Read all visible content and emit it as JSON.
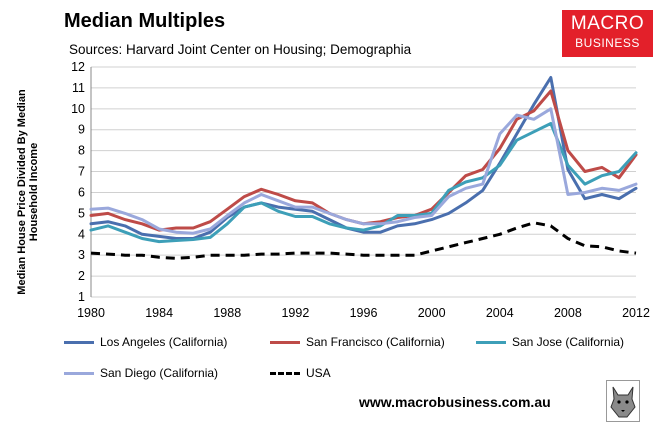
{
  "title": "Median Multiples",
  "subtitle": "Sources: Harvard Joint Center on Housing; Demographia",
  "logo": {
    "line1": "MACRO",
    "line2": "BUSINESS"
  },
  "website": "www.macrobusiness.com.au",
  "icons": {
    "wolf": "wolf-logo-icon"
  },
  "chart_data": {
    "type": "line",
    "title": "Median Multiples",
    "ylabel": "Median House Price Divided By Median Household Income",
    "xlabel": "",
    "xlim": [
      1980,
      2012
    ],
    "ylim": [
      1,
      12
    ],
    "xticks": [
      "1980",
      "1984",
      "1988",
      "1992",
      "1996",
      "2000",
      "2004",
      "2008",
      "2012"
    ],
    "yticks": [
      "1",
      "2",
      "3",
      "4",
      "5",
      "6",
      "7",
      "8",
      "9",
      "10",
      "11",
      "12"
    ],
    "grid": "horizontal",
    "legend": "bottom",
    "x": [
      1980,
      1981,
      1982,
      1983,
      1984,
      1985,
      1986,
      1987,
      1988,
      1989,
      1990,
      1991,
      1992,
      1993,
      1994,
      1995,
      1996,
      1997,
      1998,
      1999,
      2000,
      2001,
      2002,
      2003,
      2004,
      2005,
      2006,
      2007,
      2008,
      2009,
      2010,
      2011,
      2012
    ],
    "series": [
      {
        "name": "Los Angeles (California)",
        "color": "#4a6fae",
        "dash": "",
        "width": 3,
        "values": [
          4.5,
          4.6,
          4.4,
          4.0,
          3.9,
          3.8,
          3.8,
          4.1,
          4.8,
          5.3,
          5.5,
          5.3,
          5.2,
          5.1,
          4.7,
          4.3,
          4.1,
          4.1,
          4.4,
          4.5,
          4.7,
          5.0,
          5.5,
          6.1,
          7.4,
          8.8,
          10.2,
          11.5,
          7.1,
          5.7,
          5.9,
          5.7,
          6.2
        ]
      },
      {
        "name": "San Francisco (California)",
        "color": "#be4b48",
        "dash": "",
        "width": 3,
        "values": [
          4.9,
          5.0,
          4.7,
          4.5,
          4.2,
          4.3,
          4.3,
          4.6,
          5.2,
          5.8,
          6.15,
          5.9,
          5.6,
          5.5,
          5.0,
          4.7,
          4.5,
          4.6,
          4.8,
          4.9,
          5.2,
          6.0,
          6.8,
          7.1,
          8.1,
          9.5,
          9.9,
          10.85,
          8.0,
          7.0,
          7.2,
          6.7,
          7.8
        ]
      },
      {
        "name": "San Jose (California)",
        "color": "#3d9fb8",
        "dash": "",
        "width": 3,
        "values": [
          4.2,
          4.4,
          4.1,
          3.8,
          3.65,
          3.7,
          3.75,
          3.85,
          4.5,
          5.3,
          5.5,
          5.1,
          4.85,
          4.85,
          4.5,
          4.3,
          4.2,
          4.4,
          4.9,
          4.9,
          5.0,
          6.1,
          6.5,
          6.7,
          7.3,
          8.5,
          8.9,
          9.3,
          7.3,
          6.4,
          6.8,
          7.0,
          7.9
        ]
      },
      {
        "name": "San Diego (California)",
        "color": "#9aa8dc",
        "dash": "",
        "width": 3,
        "values": [
          5.2,
          5.25,
          5.0,
          4.7,
          4.25,
          4.1,
          4.05,
          4.25,
          4.9,
          5.5,
          5.9,
          5.6,
          5.3,
          5.3,
          5.0,
          4.7,
          4.5,
          4.5,
          4.6,
          4.8,
          4.9,
          5.8,
          6.2,
          6.4,
          8.8,
          9.7,
          9.5,
          10.0,
          5.9,
          6.0,
          6.2,
          6.1,
          6.4
        ]
      },
      {
        "name": "USA",
        "color": "#000000",
        "dash": "9 6",
        "width": 3,
        "values": [
          3.1,
          3.05,
          3.0,
          3.0,
          2.9,
          2.85,
          2.9,
          3.0,
          3.0,
          3.0,
          3.05,
          3.05,
          3.1,
          3.1,
          3.1,
          3.05,
          3.0,
          3.0,
          3.0,
          3.0,
          3.2,
          3.4,
          3.6,
          3.8,
          4.0,
          4.3,
          4.55,
          4.4,
          3.8,
          3.45,
          3.4,
          3.2,
          3.1
        ]
      }
    ]
  }
}
